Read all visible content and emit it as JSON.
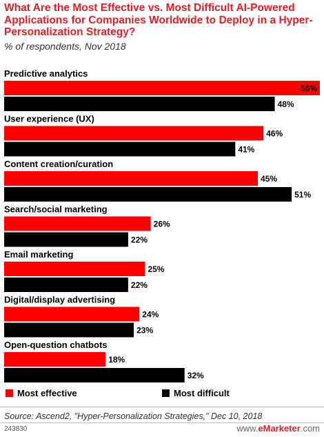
{
  "header": {
    "title": "What Are the Most Effective vs. Most Difficult AI-Powered Applications for Companies Worldwide to Deploy in a Hyper-Personalization Strategy?",
    "subtitle": "% of respondents, Nov 2018"
  },
  "chart_data": {
    "type": "bar",
    "orientation": "horizontal",
    "categories": [
      "Predictive analytics",
      "User experience (UX)",
      "Content creation/curation",
      "Search/social marketing",
      "Email marketing",
      "Digital/display advertising",
      "Open-question chatbots"
    ],
    "series": [
      {
        "name": "Most effective",
        "color": "#ff0000",
        "values": [
          56,
          46,
          45,
          26,
          25,
          24,
          18
        ]
      },
      {
        "name": "Most difficult",
        "color": "#000000",
        "values": [
          48,
          41,
          51,
          22,
          22,
          23,
          32
        ]
      }
    ],
    "value_suffix": "%",
    "xlim": [
      0,
      56
    ],
    "legend_position": "bottom",
    "grid": false
  },
  "legend": {
    "items": [
      {
        "label": "Most effective",
        "color": "#ff0000"
      },
      {
        "label": "Most difficult",
        "color": "#000000"
      }
    ]
  },
  "footer": {
    "source": "Source: Ascend2, \"Hyper-Personalization Strategies,\" Dec 10, 2018",
    "chart_id": "243830",
    "brand_prefix": "www.",
    "brand_name": "eMarketer",
    "brand_suffix": ".com"
  }
}
